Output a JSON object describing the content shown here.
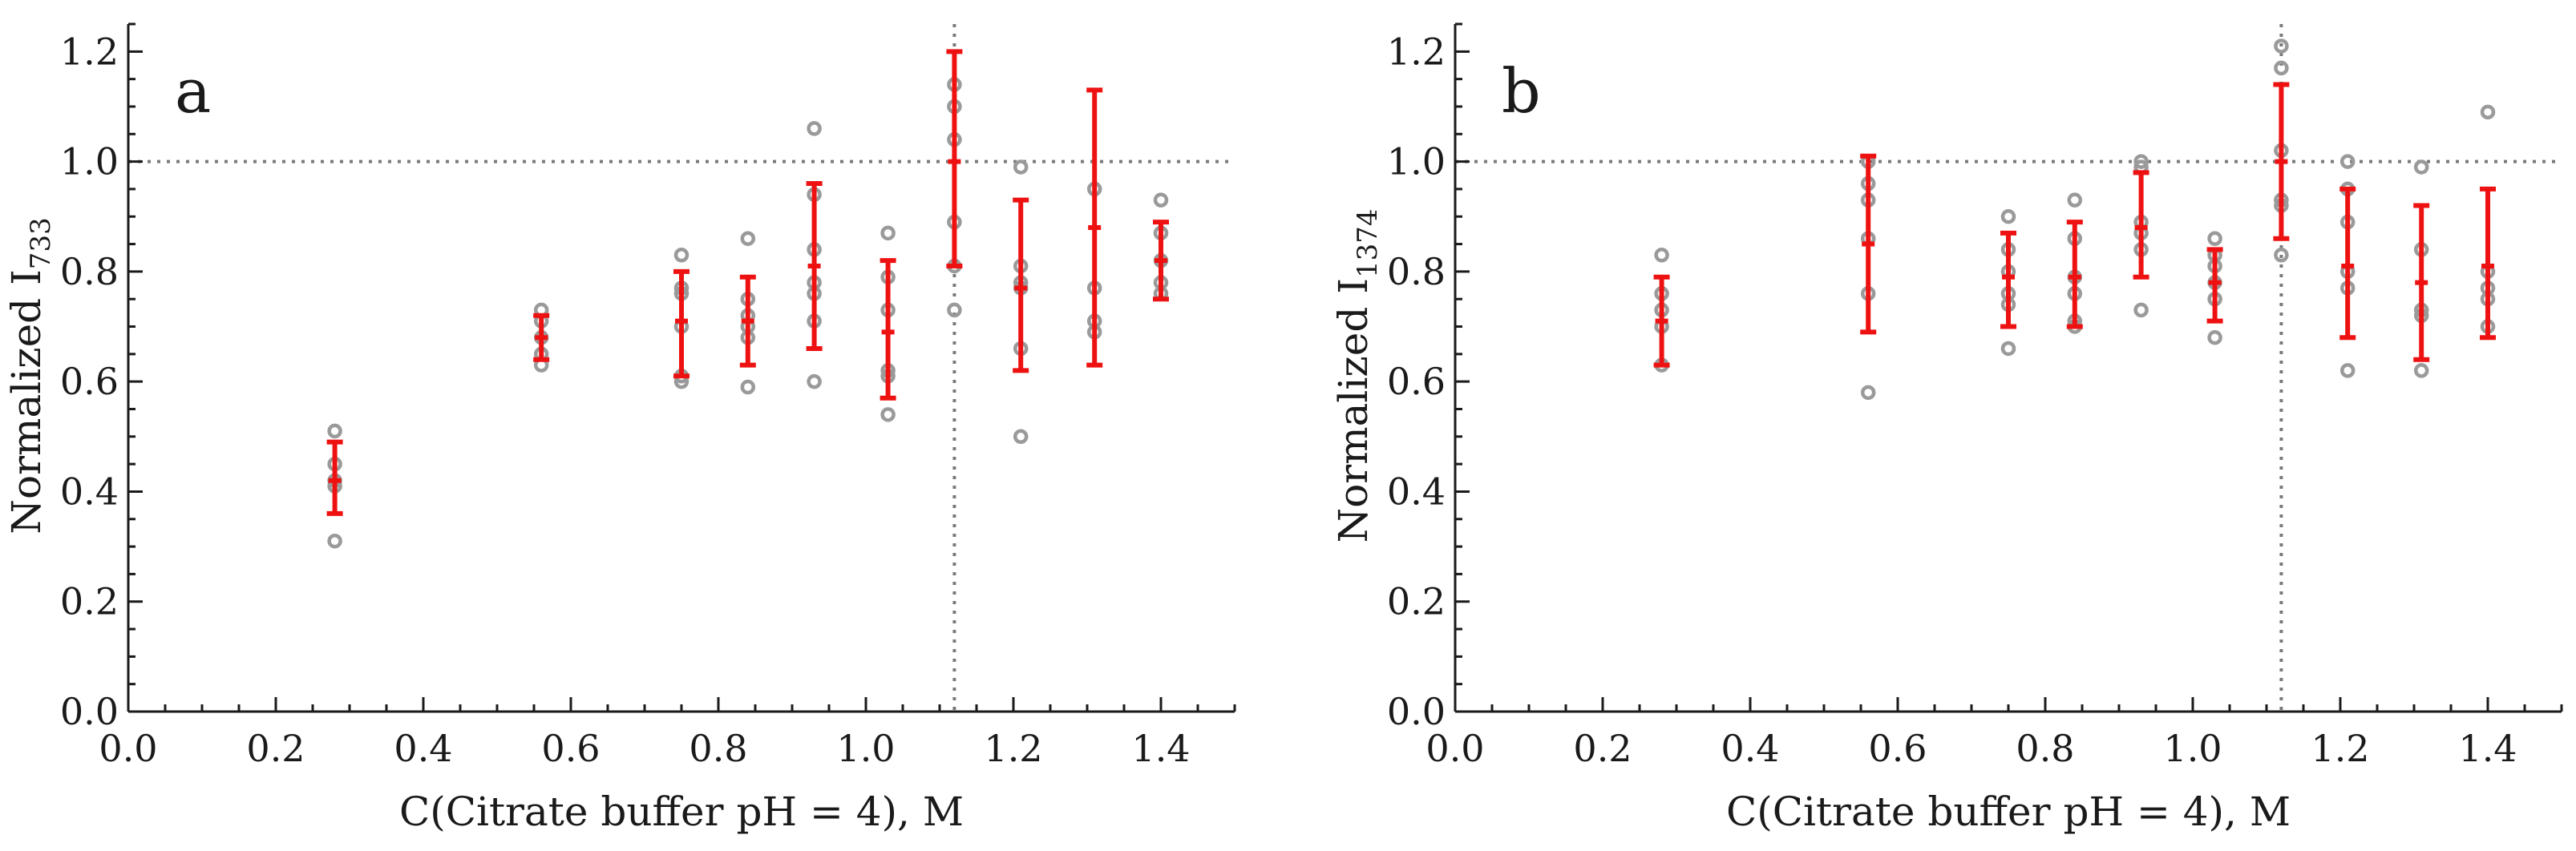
{
  "figure": {
    "colors": {
      "mean_bar": "#ee1111",
      "point": "#9a9a9a",
      "axis": "#1a1a1a",
      "reference": "#7a7a7a"
    }
  },
  "chart_data": [
    {
      "type": "scatter",
      "panel_label": "a",
      "title": "",
      "xlabel": "C(Citrate buffer pH = 4), M",
      "ylabel_main": "Normalized  I",
      "ylabel_sub": "733",
      "xlim": [
        0.0,
        1.5
      ],
      "ylim": [
        0.0,
        1.25
      ],
      "x_ticks": [
        "0.0",
        "0.2",
        "0.4",
        "0.6",
        "0.8",
        "1.0",
        "1.2",
        "1.4"
      ],
      "y_ticks": [
        "0.0",
        "0.2",
        "0.4",
        "0.6",
        "0.8",
        "1.0",
        "1.2"
      ],
      "reference_lines": {
        "y": 1.0,
        "x": 1.12
      },
      "points": [
        {
          "x": 0.28,
          "values": [
            0.31,
            0.41,
            0.42,
            0.45,
            0.51
          ]
        },
        {
          "x": 0.56,
          "values": [
            0.63,
            0.65,
            0.68,
            0.71,
            0.73
          ]
        },
        {
          "x": 0.75,
          "values": [
            0.6,
            0.61,
            0.7,
            0.76,
            0.77,
            0.83
          ]
        },
        {
          "x": 0.84,
          "values": [
            0.59,
            0.68,
            0.7,
            0.72,
            0.75,
            0.86
          ]
        },
        {
          "x": 0.93,
          "values": [
            0.6,
            0.71,
            0.76,
            0.78,
            0.84,
            0.94,
            1.06
          ]
        },
        {
          "x": 1.03,
          "values": [
            0.54,
            0.61,
            0.62,
            0.73,
            0.79,
            0.87
          ]
        },
        {
          "x": 1.12,
          "values": [
            0.73,
            0.81,
            0.89,
            1.04,
            1.1,
            1.14
          ]
        },
        {
          "x": 1.21,
          "values": [
            0.5,
            0.66,
            0.77,
            0.78,
            0.81,
            0.99
          ]
        },
        {
          "x": 1.31,
          "values": [
            0.69,
            0.71,
            0.77,
            0.95
          ]
        },
        {
          "x": 1.4,
          "values": [
            0.76,
            0.78,
            0.82,
            0.87,
            0.93
          ]
        }
      ],
      "error_bars": [
        {
          "x": 0.28,
          "mean": 0.42,
          "low": 0.36,
          "high": 0.49
        },
        {
          "x": 0.56,
          "mean": 0.68,
          "low": 0.64,
          "high": 0.72
        },
        {
          "x": 0.75,
          "mean": 0.71,
          "low": 0.61,
          "high": 0.8
        },
        {
          "x": 0.84,
          "mean": 0.71,
          "low": 0.63,
          "high": 0.79
        },
        {
          "x": 0.93,
          "mean": 0.81,
          "low": 0.66,
          "high": 0.96
        },
        {
          "x": 1.03,
          "mean": 0.69,
          "low": 0.57,
          "high": 0.82
        },
        {
          "x": 1.12,
          "mean": 1.0,
          "low": 0.81,
          "high": 1.2
        },
        {
          "x": 1.21,
          "mean": 0.77,
          "low": 0.62,
          "high": 0.93
        },
        {
          "x": 1.31,
          "mean": 0.88,
          "low": 0.63,
          "high": 1.13
        },
        {
          "x": 1.4,
          "mean": 0.82,
          "low": 0.75,
          "high": 0.89
        }
      ]
    },
    {
      "type": "scatter",
      "panel_label": "b",
      "title": "",
      "xlabel": "C(Citrate buffer pH = 4), M",
      "ylabel_main": "Normalized  I",
      "ylabel_sub": "1374",
      "xlim": [
        0.0,
        1.5
      ],
      "ylim": [
        0.0,
        1.25
      ],
      "x_ticks": [
        "0.0",
        "0.2",
        "0.4",
        "0.6",
        "0.8",
        "1.0",
        "1.2",
        "1.4"
      ],
      "y_ticks": [
        "0.0",
        "0.2",
        "0.4",
        "0.6",
        "0.8",
        "1.0",
        "1.2"
      ],
      "reference_lines": {
        "y": 1.0,
        "x": 1.12
      },
      "points": [
        {
          "x": 0.28,
          "values": [
            0.63,
            0.7,
            0.73,
            0.76,
            0.83
          ]
        },
        {
          "x": 0.56,
          "values": [
            0.58,
            0.76,
            0.86,
            0.93,
            0.96,
            1.0
          ]
        },
        {
          "x": 0.75,
          "values": [
            0.66,
            0.74,
            0.76,
            0.8,
            0.84,
            0.9
          ]
        },
        {
          "x": 0.84,
          "values": [
            0.7,
            0.71,
            0.76,
            0.79,
            0.86,
            0.93
          ]
        },
        {
          "x": 0.93,
          "values": [
            0.73,
            0.84,
            0.87,
            0.89,
            0.99,
            1.0
          ]
        },
        {
          "x": 1.03,
          "values": [
            0.68,
            0.75,
            0.78,
            0.81,
            0.83,
            0.86
          ]
        },
        {
          "x": 1.12,
          "values": [
            0.83,
            0.92,
            0.93,
            1.02,
            1.17,
            1.21
          ]
        },
        {
          "x": 1.21,
          "values": [
            0.62,
            0.77,
            0.8,
            0.89,
            0.95,
            1.0
          ]
        },
        {
          "x": 1.31,
          "values": [
            0.62,
            0.72,
            0.73,
            0.84,
            0.99
          ]
        },
        {
          "x": 1.4,
          "values": [
            0.7,
            0.75,
            0.77,
            0.8,
            1.09
          ]
        }
      ],
      "error_bars": [
        {
          "x": 0.28,
          "mean": 0.71,
          "low": 0.63,
          "high": 0.79
        },
        {
          "x": 0.56,
          "mean": 0.85,
          "low": 0.69,
          "high": 1.01
        },
        {
          "x": 0.75,
          "mean": 0.79,
          "low": 0.7,
          "high": 0.87
        },
        {
          "x": 0.84,
          "mean": 0.79,
          "low": 0.7,
          "high": 0.89
        },
        {
          "x": 0.93,
          "mean": 0.88,
          "low": 0.79,
          "high": 0.98
        },
        {
          "x": 1.03,
          "mean": 0.78,
          "low": 0.71,
          "high": 0.84
        },
        {
          "x": 1.12,
          "mean": 1.0,
          "low": 0.86,
          "high": 1.14
        },
        {
          "x": 1.21,
          "mean": 0.81,
          "low": 0.68,
          "high": 0.95
        },
        {
          "x": 1.31,
          "mean": 0.78,
          "low": 0.64,
          "high": 0.92
        },
        {
          "x": 1.4,
          "mean": 0.81,
          "low": 0.68,
          "high": 0.95
        }
      ]
    }
  ]
}
